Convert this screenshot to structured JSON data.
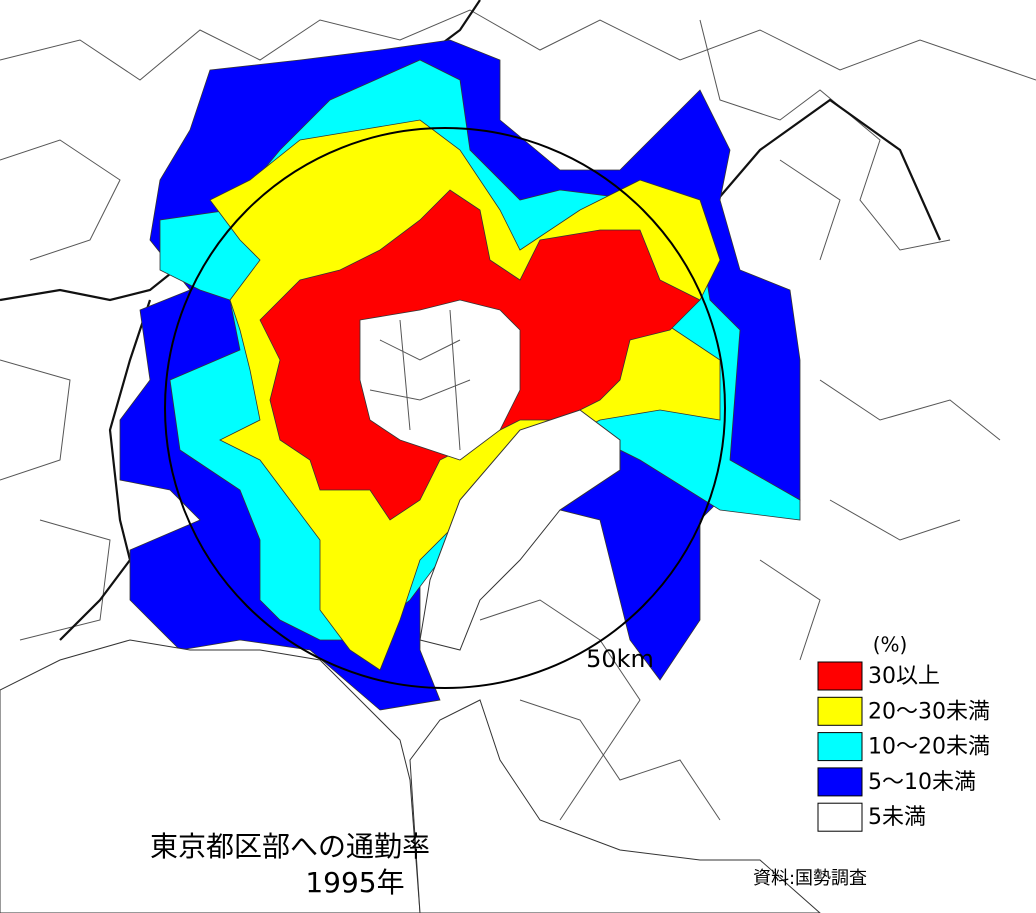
{
  "map": {
    "title": "東京都区部への通勤率",
    "year": "1995年",
    "radius_label": "50km",
    "source": "資料:国勢調査",
    "legend": {
      "unit": "(%)",
      "items": [
        {
          "label": "30以上",
          "color": "#ff0000"
        },
        {
          "label": "20～30未満",
          "color": "#ffff00"
        },
        {
          "label": "10～20未満",
          "color": "#00ffff"
        },
        {
          "label": "5～10未満",
          "color": "#0000ff"
        },
        {
          "label": "5未満",
          "color": "#ffffff"
        }
      ]
    }
  }
}
